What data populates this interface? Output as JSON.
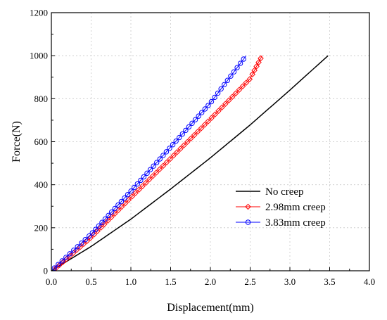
{
  "chart_data": {
    "type": "line",
    "title": "",
    "xlabel": "Displacement(mm)",
    "ylabel": "Force(N)",
    "xlim": [
      0,
      4.0
    ],
    "ylim": [
      0,
      1200
    ],
    "xticks": [
      0,
      0.5,
      1.0,
      1.5,
      2.0,
      2.5,
      3.0,
      3.5,
      4.0
    ],
    "xtick_labels": [
      "0.0",
      "0.5",
      "1.0",
      "1.5",
      "2.0",
      "2.5",
      "3.0",
      "3.5",
      "4.0"
    ],
    "yticks": [
      0,
      200,
      400,
      600,
      800,
      1000,
      1200
    ],
    "ytick_labels": [
      "0",
      "200",
      "400",
      "600",
      "800",
      "1000",
      "1200"
    ],
    "grid": true,
    "legend_position": "bottom-right",
    "series": [
      {
        "name": "No creep",
        "color": "#000000",
        "marker": "none",
        "x": [
          0,
          0.5,
          1.0,
          1.5,
          2.0,
          2.5,
          3.0,
          3.48
        ],
        "y": [
          0,
          113,
          240,
          380,
          525,
          678,
          840,
          1000
        ]
      },
      {
        "name": "2.98mm creep",
        "color": "#ff0000",
        "marker": "diamond",
        "x": [
          0.05,
          0.5,
          1.0,
          1.5,
          2.0,
          2.5,
          2.65
        ],
        "y": [
          10,
          155,
          340,
          522,
          705,
          893,
          1000
        ]
      },
      {
        "name": "3.83mm creep",
        "color": "#0000ff",
        "marker": "circle",
        "x": [
          0.03,
          0.5,
          1.0,
          1.5,
          2.0,
          2.45
        ],
        "y": [
          10,
          170,
          370,
          575,
          780,
          1000
        ]
      }
    ]
  }
}
